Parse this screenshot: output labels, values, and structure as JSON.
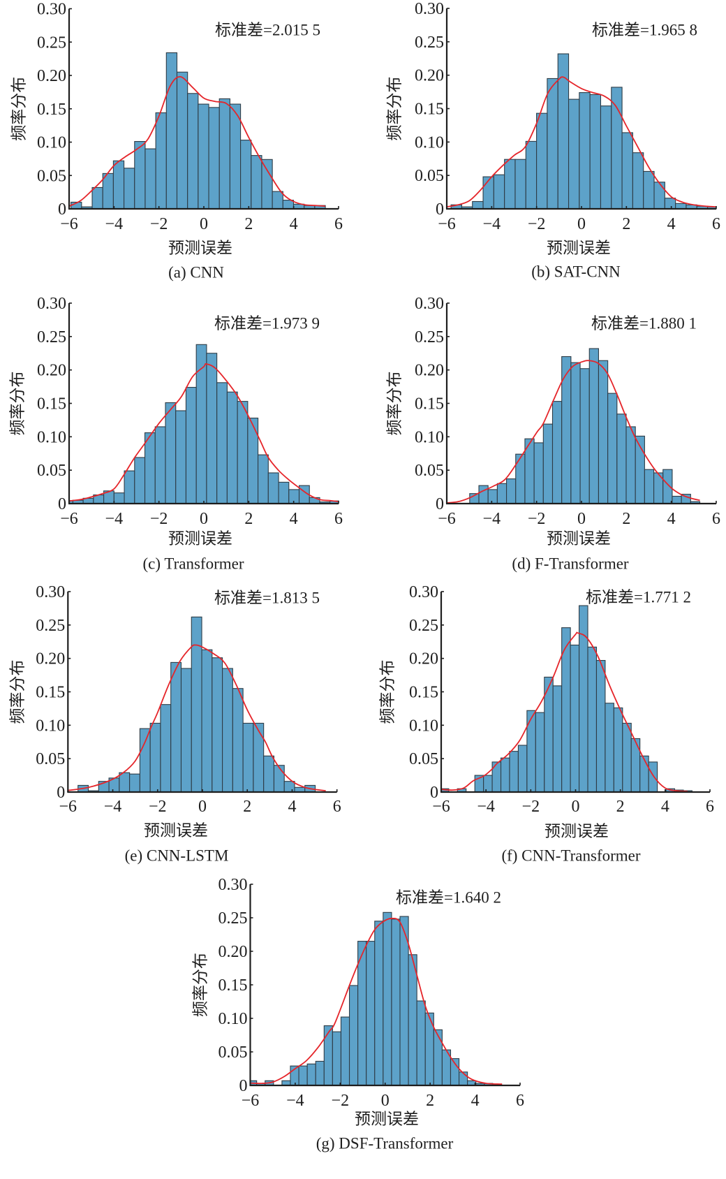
{
  "figure": {
    "colors": {
      "bar_fill": "#5da2c9",
      "bar_edge": "#2e3c46",
      "curve": "#e5252a",
      "axis": "#1e1e1e"
    }
  },
  "chart_data": [
    {
      "id": "a",
      "type": "bar",
      "title": "(a) CNN",
      "annotation": "标准差=2.015 5",
      "xlabel": "预测误差",
      "ylabel": "频率分布",
      "xlim": [
        -6,
        6
      ],
      "ylim": [
        0,
        0.3
      ],
      "grid": false,
      "legend": "none",
      "xtick_values": [
        -6,
        -4,
        -2,
        0,
        2,
        4,
        6
      ],
      "xticks": [
        "−6",
        "−4",
        "−2",
        "0",
        "2",
        "4",
        "6"
      ],
      "ytick_values": [
        0,
        0.05,
        0.1,
        0.15,
        0.2,
        0.25,
        0.3
      ],
      "yticks": [
        "0",
        "0.05",
        "0.10",
        "0.15",
        "0.20",
        "0.25",
        "0.30"
      ],
      "series": [
        {
          "name": "histogram",
          "type": "bar",
          "bin_start": -5.917,
          "bin_width": 0.472,
          "values": [
            0.01,
            0.003,
            0.032,
            0.053,
            0.072,
            0.061,
            0.101,
            0.09,
            0.144,
            0.234,
            0.205,
            0.173,
            0.157,
            0.152,
            0.165,
            0.157,
            0.103,
            0.08,
            0.074,
            0.026,
            0.013,
            0.007,
            0.005,
            0.005
          ]
        },
        {
          "name": "density curve",
          "type": "line",
          "x": [
            -6,
            -5.5,
            -5,
            -4.5,
            -4,
            -3.5,
            -3,
            -2.5,
            -2,
            -1.5,
            -1.05,
            -0.5,
            0,
            0.5,
            1,
            1.5,
            2,
            2.5,
            3,
            3.5,
            4,
            4.5,
            5,
            5.4
          ],
          "y": [
            0.004,
            0.012,
            0.027,
            0.044,
            0.065,
            0.078,
            0.089,
            0.104,
            0.139,
            0.184,
            0.198,
            0.182,
            0.166,
            0.161,
            0.158,
            0.14,
            0.107,
            0.076,
            0.048,
            0.023,
            0.011,
            0.006,
            0.005,
            0.004
          ]
        }
      ]
    },
    {
      "id": "b",
      "type": "bar",
      "title": "(b) SAT-CNN",
      "annotation": "标准差=1.965 8",
      "xlabel": "预测误差",
      "ylabel": "频率分布",
      "xlim": [
        -6,
        6
      ],
      "ylim": [
        0,
        0.3
      ],
      "grid": false,
      "legend": "none",
      "xtick_values": [
        -6,
        -4,
        -2,
        0,
        2,
        4,
        6
      ],
      "xticks": [
        "−6",
        "−4",
        "−2",
        "0",
        "2",
        "4",
        "6"
      ],
      "ytick_values": [
        0,
        0.05,
        0.1,
        0.15,
        0.2,
        0.25,
        0.3
      ],
      "yticks": [
        "0",
        "0.05",
        "0.10",
        "0.15",
        "0.20",
        "0.25",
        "0.30"
      ],
      "series": [
        {
          "name": "histogram",
          "type": "bar",
          "bin_start": -5.81,
          "bin_width": 0.476,
          "values": [
            0.006,
            0.003,
            0.011,
            0.048,
            0.051,
            0.074,
            0.074,
            0.101,
            0.143,
            0.195,
            0.232,
            0.164,
            0.174,
            0.171,
            0.154,
            0.182,
            0.114,
            0.084,
            0.056,
            0.04,
            0.016,
            0.008,
            0.006,
            0.004,
            0.003
          ]
        },
        {
          "name": "density curve",
          "type": "line",
          "x": [
            -6,
            -5.5,
            -5,
            -4.5,
            -4,
            -3.5,
            -3,
            -2.5,
            -2,
            -1.5,
            -1,
            -0.8,
            -0.5,
            0,
            0.5,
            1,
            1.5,
            2,
            2.5,
            3,
            3.5,
            4,
            4.5,
            5,
            5.5,
            6
          ],
          "y": [
            0.003,
            0.006,
            0.012,
            0.028,
            0.048,
            0.065,
            0.08,
            0.093,
            0.128,
            0.173,
            0.194,
            0.197,
            0.19,
            0.18,
            0.174,
            0.169,
            0.155,
            0.124,
            0.093,
            0.062,
            0.037,
            0.018,
            0.01,
            0.006,
            0.004,
            0.003
          ]
        }
      ]
    },
    {
      "id": "c",
      "type": "bar",
      "title": "(c) Transformer",
      "annotation": "标准差=1.973 9",
      "xlabel": "预测误差",
      "ylabel": "频率分布",
      "xlim": [
        -6,
        6
      ],
      "ylim": [
        0,
        0.3
      ],
      "grid": false,
      "legend": "none",
      "xtick_values": [
        -6,
        -4,
        -2,
        0,
        2,
        4,
        6
      ],
      "xticks": [
        "−6",
        "−4",
        "−2",
        "0",
        "2",
        "4",
        "6"
      ],
      "ytick_values": [
        0,
        0.05,
        0.1,
        0.15,
        0.2,
        0.25,
        0.3
      ],
      "yticks": [
        "0",
        "0.05",
        "0.10",
        "0.15",
        "0.20",
        "0.25",
        "0.30"
      ],
      "series": [
        {
          "name": "histogram",
          "type": "bar",
          "bin_start": -6.29,
          "bin_width": 0.458,
          "values": [
            0.0045,
            0.005,
            0.008,
            0.013,
            0.019,
            0.016,
            0.049,
            0.069,
            0.106,
            0.115,
            0.151,
            0.139,
            0.174,
            0.238,
            0.225,
            0.181,
            0.167,
            0.153,
            0.128,
            0.073,
            0.046,
            0.032,
            0.021,
            0.027,
            0.009,
            0.0025,
            0.004
          ]
        },
        {
          "name": "density curve",
          "type": "line",
          "x": [
            -6,
            -5.5,
            -5,
            -4.5,
            -4,
            -3.56,
            -3.1,
            -2.63,
            -2,
            -1.5,
            -1,
            -0.5,
            0,
            0.1,
            0.5,
            1,
            1.5,
            2,
            2.5,
            2.87,
            3.32,
            3.77,
            4.23,
            4.69,
            5.16,
            5.6,
            6
          ],
          "y": [
            0.004,
            0.006,
            0.01,
            0.015,
            0.022,
            0.043,
            0.068,
            0.09,
            0.12,
            0.14,
            0.16,
            0.19,
            0.205,
            0.209,
            0.203,
            0.184,
            0.161,
            0.13,
            0.095,
            0.069,
            0.05,
            0.036,
            0.024,
            0.013,
            0.006,
            0.0045,
            0.003
          ]
        }
      ]
    },
    {
      "id": "d",
      "type": "bar",
      "title": "(d) F-Transformer",
      "annotation": "标准差=1.880 1",
      "xlabel": "预测误差",
      "ylabel": "频率分布",
      "xlim": [
        -6,
        6
      ],
      "ylim": [
        0,
        0.3
      ],
      "grid": false,
      "legend": "none",
      "xtick_values": [
        -6,
        -4,
        -2,
        0,
        2,
        4,
        6
      ],
      "xticks": [
        "−6",
        "−4",
        "−2",
        "0",
        "2",
        "4",
        "6"
      ],
      "ytick_values": [
        0,
        0.05,
        0.1,
        0.15,
        0.2,
        0.25,
        0.3
      ],
      "yticks": [
        "0",
        "0.05",
        "0.10",
        "0.15",
        "0.20",
        "0.25",
        "0.30"
      ],
      "series": [
        {
          "name": "histogram",
          "type": "bar",
          "bin_start": -4.98,
          "bin_width": 0.41,
          "values": [
            0.015,
            0.027,
            0.021,
            0.03,
            0.037,
            0.074,
            0.097,
            0.091,
            0.119,
            0.153,
            0.22,
            0.211,
            0.202,
            0.232,
            0.214,
            0.165,
            0.134,
            0.115,
            0.101,
            0.051,
            0.046,
            0.051,
            0.011,
            0.014,
            0.003
          ]
        },
        {
          "name": "density curve",
          "type": "line",
          "x": [
            -6,
            -5.48,
            -4.96,
            -4.45,
            -3.93,
            -3.41,
            -2.89,
            -2.37,
            -1.96,
            -1.7,
            -1.23,
            -0.82,
            -0.4,
            0.01,
            0.32,
            0.74,
            1.15,
            1.56,
            1.98,
            2.39,
            2.81,
            3.22,
            3.64,
            4.05,
            4.47,
            4.88,
            5.27
          ],
          "y": [
            0.001,
            0.003,
            0.009,
            0.018,
            0.026,
            0.036,
            0.06,
            0.087,
            0.108,
            0.12,
            0.156,
            0.186,
            0.205,
            0.212,
            0.214,
            0.21,
            0.195,
            0.165,
            0.13,
            0.099,
            0.074,
            0.053,
            0.036,
            0.022,
            0.013,
            0.008,
            0.005
          ]
        }
      ]
    },
    {
      "id": "e",
      "type": "bar",
      "title": "(e) CNN-LSTM",
      "annotation": "标准差=1.813 5",
      "xlabel": "预测误差",
      "ylabel": "频率分布",
      "xlim": [
        -6,
        6
      ],
      "ylim": [
        0,
        0.3
      ],
      "grid": false,
      "legend": "none",
      "xtick_values": [
        -6,
        -4,
        -2,
        0,
        2,
        4,
        6
      ],
      "xticks": [
        "−6",
        "−4",
        "−2",
        "0",
        "2",
        "4",
        "6"
      ],
      "ytick_values": [
        0,
        0.05,
        0.1,
        0.15,
        0.2,
        0.25,
        0.3
      ],
      "yticks": [
        "0",
        "0.05",
        "0.10",
        "0.15",
        "0.20",
        "0.25",
        "0.30"
      ],
      "series": [
        {
          "name": "histogram",
          "type": "bar",
          "bin_start": -5.55,
          "bin_width": 0.46,
          "values": [
            0.01,
            0.002,
            0.016,
            0.021,
            0.029,
            0.027,
            0.095,
            0.103,
            0.131,
            0.194,
            0.185,
            0.262,
            0.213,
            0.201,
            0.185,
            0.155,
            0.103,
            0.103,
            0.054,
            0.04,
            0.016,
            0.007,
            0.01
          ]
        },
        {
          "name": "density curve",
          "type": "line",
          "x": [
            -6,
            -5.08,
            -4.15,
            -3.53,
            -3.01,
            -2.6,
            -2.28,
            -2,
            -1.5,
            -1,
            -0.5,
            -0.3,
            0,
            0.5,
            1,
            1.5,
            2,
            2.5,
            2.81,
            3.12,
            3.53,
            4.05,
            4.57,
            5,
            5.5
          ],
          "y": [
            0.0024,
            0.007,
            0.017,
            0.029,
            0.046,
            0.072,
            0.098,
            0.119,
            0.161,
            0.196,
            0.217,
            0.22,
            0.217,
            0.207,
            0.193,
            0.161,
            0.123,
            0.092,
            0.075,
            0.053,
            0.032,
            0.015,
            0.007,
            0.004,
            0.002
          ]
        }
      ]
    },
    {
      "id": "f",
      "type": "bar",
      "title": "(f) CNN-Transformer",
      "annotation": "标准差=1.771 2",
      "xlabel": "预测误差",
      "ylabel": "频率分布",
      "xlim": [
        -6,
        6
      ],
      "ylim": [
        0,
        0.3
      ],
      "grid": false,
      "legend": "none",
      "xtick_values": [
        -6,
        -4,
        -2,
        0,
        2,
        4,
        6
      ],
      "xticks": [
        "−6",
        "−4",
        "−2",
        "0",
        "2",
        "4",
        "6"
      ],
      "ytick_values": [
        0,
        0.05,
        0.1,
        0.15,
        0.2,
        0.25,
        0.3
      ],
      "yticks": [
        "0",
        "0.05",
        "0.10",
        "0.15",
        "0.20",
        "0.25",
        "0.30"
      ],
      "series": [
        {
          "name": "histogram",
          "type": "bar",
          "bin_start": -6.05,
          "bin_width": 0.388,
          "values": [
            0.005,
            0,
            0.005,
            0,
            0.025,
            0.025,
            0.045,
            0.051,
            0.061,
            0.07,
            0.122,
            0.119,
            0.172,
            0.159,
            0.246,
            0.22,
            0.279,
            0.217,
            0.197,
            0.133,
            0.126,
            0.103,
            0.08,
            0.054,
            0.045,
            0,
            0.005,
            0.003,
            0.002
          ]
        },
        {
          "name": "density curve",
          "type": "line",
          "x": [
            -6,
            -5.5,
            -5,
            -4.56,
            -4.1,
            -3.74,
            -3.5,
            -3,
            -2.5,
            -2,
            -1.5,
            -1,
            -0.5,
            0,
            0.1,
            0.5,
            1,
            1.5,
            2,
            2.5,
            3,
            3.5,
            4,
            4.5,
            5
          ],
          "y": [
            0.004,
            0.003,
            0.006,
            0.017,
            0.024,
            0.034,
            0.043,
            0.057,
            0.077,
            0.109,
            0.137,
            0.172,
            0.213,
            0.236,
            0.238,
            0.231,
            0.203,
            0.161,
            0.123,
            0.088,
            0.053,
            0.023,
            0.006,
            0.002,
            0.001
          ]
        }
      ]
    },
    {
      "id": "g",
      "type": "bar",
      "title": "(g) DSF-Transformer",
      "annotation": "标准差=1.640 2",
      "xlabel": "预测误差",
      "ylabel": "频率分布",
      "xlim": [
        -6,
        6
      ],
      "ylim": [
        0,
        0.3
      ],
      "grid": false,
      "legend": "none",
      "xtick_values": [
        -6,
        -4,
        -2,
        0,
        2,
        4,
        6
      ],
      "xticks": [
        "−6",
        "−4",
        "−2",
        "0",
        "2",
        "4",
        "6"
      ],
      "ytick_values": [
        0,
        0.05,
        0.1,
        0.15,
        0.2,
        0.25,
        0.3
      ],
      "yticks": [
        "0",
        "0.05",
        "0.10",
        "0.15",
        "0.20",
        "0.25",
        "0.30"
      ],
      "series": [
        {
          "name": "histogram",
          "type": "bar",
          "bin_start": -6.09,
          "bin_width": 0.375,
          "values": [
            0.007,
            0.003,
            0.007,
            0,
            0.007,
            0.029,
            0.029,
            0.032,
            0.036,
            0.089,
            0.08,
            0.102,
            0.149,
            0.215,
            0.215,
            0.245,
            0.258,
            0.248,
            0.252,
            0.195,
            0.126,
            0.108,
            0.083,
            0.053,
            0.04,
            0.02,
            0.007,
            0.003,
            0.003,
            0.002
          ]
        },
        {
          "name": "density curve",
          "type": "line",
          "x": [
            -6,
            -5.5,
            -5,
            -4.5,
            -4,
            -3.5,
            -3,
            -2.5,
            -2.22,
            -1.58,
            -1.21,
            -0.84,
            -0.47,
            -0.1,
            0.28,
            0.65,
            1.02,
            1.39,
            1.78,
            2.15,
            2.54,
            2.91,
            3.28,
            3.66,
            4,
            4.5,
            5,
            5.2
          ],
          "y": [
            0.0035,
            0.003,
            0.005,
            0.013,
            0.025,
            0.037,
            0.056,
            0.08,
            0.094,
            0.15,
            0.181,
            0.209,
            0.232,
            0.244,
            0.249,
            0.244,
            0.2125,
            0.167,
            0.119,
            0.0875,
            0.063,
            0.042,
            0.025,
            0.013,
            0.007,
            0.003,
            0.002,
            0.002
          ]
        }
      ]
    }
  ]
}
